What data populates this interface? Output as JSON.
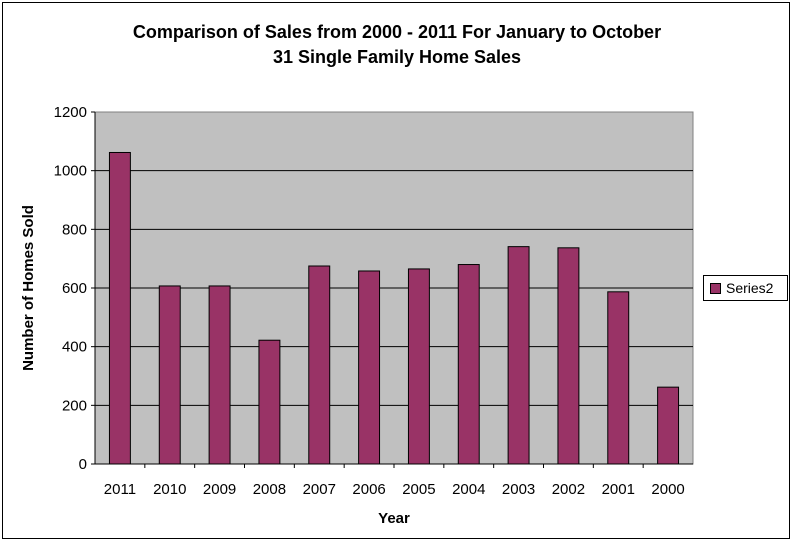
{
  "chart_data": {
    "type": "bar",
    "title_lines": [
      "Comparison of Sales from 2000 - 2011 For January to October",
      "31 Single Family Home Sales"
    ],
    "xlabel": "Year",
    "ylabel": "Number of Homes Sold",
    "categories": [
      "2011",
      "2010",
      "2009",
      "2008",
      "2007",
      "2006",
      "2005",
      "2004",
      "2003",
      "2002",
      "2001",
      "2000"
    ],
    "series": [
      {
        "name": "Series2",
        "values": [
          1062,
          607,
          607,
          422,
          675,
          658,
          665,
          680,
          741,
          737,
          587,
          262
        ],
        "color": "#993366"
      }
    ],
    "ylim": [
      0,
      1200
    ],
    "yticks": [
      "0",
      "200",
      "400",
      "600",
      "800",
      "1000",
      "1200"
    ],
    "grid": true,
    "plot_background": "#c0c0c0",
    "legend_position": "right"
  }
}
